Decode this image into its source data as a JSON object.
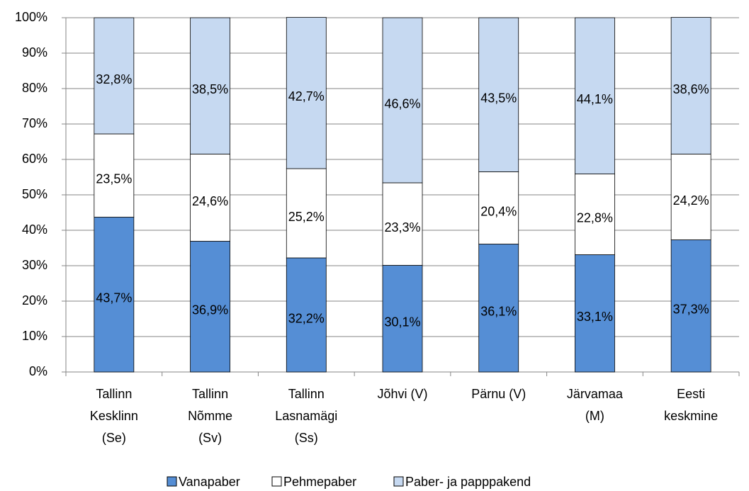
{
  "chart_data": {
    "type": "stacked-bar-100",
    "categories": [
      [
        "Tallinn",
        "Kesklinn",
        "(Se)"
      ],
      [
        "Tallinn",
        "Nõmme",
        "(Sv)"
      ],
      [
        "Tallinn",
        "Lasnamägi",
        "(Ss)"
      ],
      [
        "Jõhvi (V)"
      ],
      [
        "Pärnu (V)"
      ],
      [
        "Järvamaa",
        "(M)"
      ],
      [
        "Eesti",
        "keskmine"
      ]
    ],
    "series": [
      {
        "name": "Vanapaber",
        "color": "#558ed5",
        "values": [
          43.7,
          36.9,
          32.2,
          30.1,
          36.1,
          33.1,
          37.3
        ],
        "value_labels": [
          "43,7%",
          "36,9%",
          "32,2%",
          "30,1%",
          "36,1%",
          "33,1%",
          "37,3%"
        ]
      },
      {
        "name": "Pehmepaber",
        "color": "#ffffff",
        "values": [
          23.5,
          24.6,
          25.2,
          23.3,
          20.4,
          22.8,
          24.2
        ],
        "value_labels": [
          "23,5%",
          "24,6%",
          "25,2%",
          "23,3%",
          "20,4%",
          "22,8%",
          "24,2%"
        ]
      },
      {
        "name": "Paber- ja papppakend",
        "color": "#c6d9f1",
        "values": [
          32.8,
          38.5,
          42.7,
          46.6,
          43.5,
          44.1,
          38.6
        ],
        "value_labels": [
          "32,8%",
          "38,5%",
          "42,7%",
          "46,6%",
          "43,5%",
          "44,1%",
          "38,6%"
        ]
      }
    ],
    "ylim": [
      0,
      100
    ],
    "yticks": [
      {
        "value": 0,
        "label": "0%"
      },
      {
        "value": 10,
        "label": "10%"
      },
      {
        "value": 20,
        "label": "20%"
      },
      {
        "value": 30,
        "label": "30%"
      },
      {
        "value": 40,
        "label": "40%"
      },
      {
        "value": 50,
        "label": "50%"
      },
      {
        "value": 60,
        "label": "60%"
      },
      {
        "value": 70,
        "label": "70%"
      },
      {
        "value": 80,
        "label": "80%"
      },
      {
        "value": 90,
        "label": "90%"
      },
      {
        "value": 100,
        "label": "100%"
      }
    ],
    "grid": true,
    "legend": "bottom"
  }
}
